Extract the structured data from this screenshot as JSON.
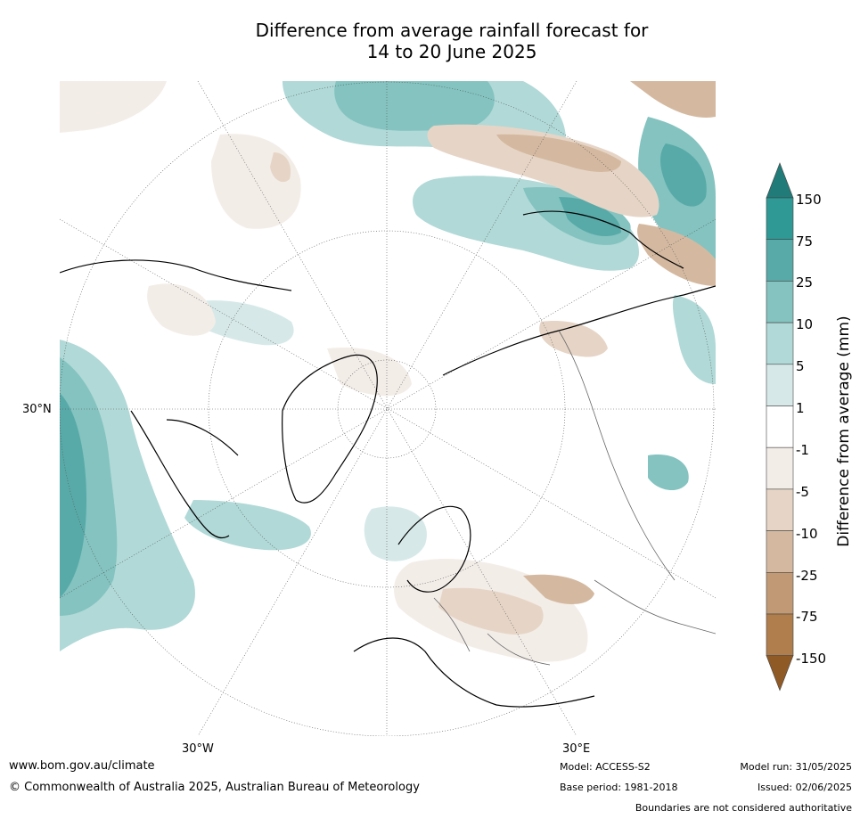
{
  "title": {
    "line1": "Difference from average rainfall forecast for",
    "line2": "14 to 20 June 2025"
  },
  "map": {
    "projection": "north-polar-stereographic",
    "region": "Northern Hemisphere",
    "labels": {
      "lat_label": "30°N",
      "lon_left": "30°W",
      "lon_right": "30°E"
    }
  },
  "colorbar": {
    "title": "Difference from average (mm)",
    "tick_labels": [
      "150",
      "75",
      "25",
      "10",
      "5",
      "1",
      "-1",
      "-5",
      "-10",
      "-25",
      "-75",
      "-150"
    ],
    "colors_top_to_bottom": [
      "#217b78",
      "#2e9995",
      "#58aaa8",
      "#84c3c0",
      "#b0d9d7",
      "#d6e9e8",
      "#ffffff",
      "#f3ede8",
      "#e6d5c6",
      "#d4b9a0",
      "#c19a75",
      "#b07d4c",
      "#8f5a25"
    ]
  },
  "footer": {
    "url": "www.bom.gov.au/climate",
    "copyright": "© Commonwealth of Australia 2025, Australian Bureau of Meteorology",
    "model": "Model: ACCESS-S2",
    "base_period": "Base period: 1981-2018",
    "model_run": "Model run: 31/05/2025",
    "issued": "Issued: 02/06/2025",
    "disclaimer": "Boundaries are not considered authoritative"
  }
}
